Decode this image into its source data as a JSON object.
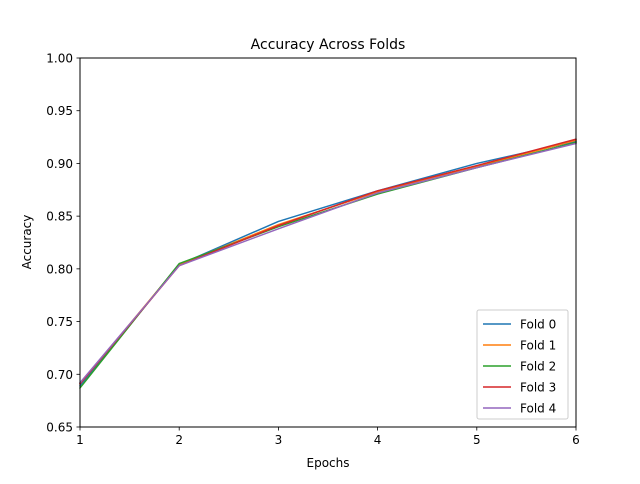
{
  "chart_data": {
    "type": "line",
    "title": "Accuracy Across Folds",
    "xlabel": "Epochs",
    "ylabel": "Accuracy",
    "xlim": [
      1,
      6
    ],
    "ylim": [
      0.65,
      1.0
    ],
    "x": [
      1,
      2,
      3,
      4,
      5,
      6
    ],
    "x_ticks": [
      "1",
      "2",
      "3",
      "4",
      "5",
      "6"
    ],
    "y_ticks": [
      "0.65",
      "0.70",
      "0.75",
      "0.80",
      "0.85",
      "0.90",
      "0.95",
      "1.00"
    ],
    "grid": false,
    "legend_position": "lower-right",
    "series": [
      {
        "name": "Fold 0",
        "color": "#1f77b4",
        "values": [
          0.689,
          0.804,
          0.845,
          0.874,
          0.9,
          0.921
        ]
      },
      {
        "name": "Fold 1",
        "color": "#ff7f0e",
        "values": [
          0.691,
          0.804,
          0.842,
          0.873,
          0.897,
          0.922
        ]
      },
      {
        "name": "Fold 2",
        "color": "#2ca02c",
        "values": [
          0.687,
          0.805,
          0.84,
          0.871,
          0.896,
          0.92
        ]
      },
      {
        "name": "Fold 3",
        "color": "#d62728",
        "values": [
          0.691,
          0.803,
          0.841,
          0.874,
          0.898,
          0.923
        ]
      },
      {
        "name": "Fold 4",
        "color": "#9467bd",
        "values": [
          0.692,
          0.803,
          0.838,
          0.872,
          0.896,
          0.919
        ]
      }
    ]
  }
}
